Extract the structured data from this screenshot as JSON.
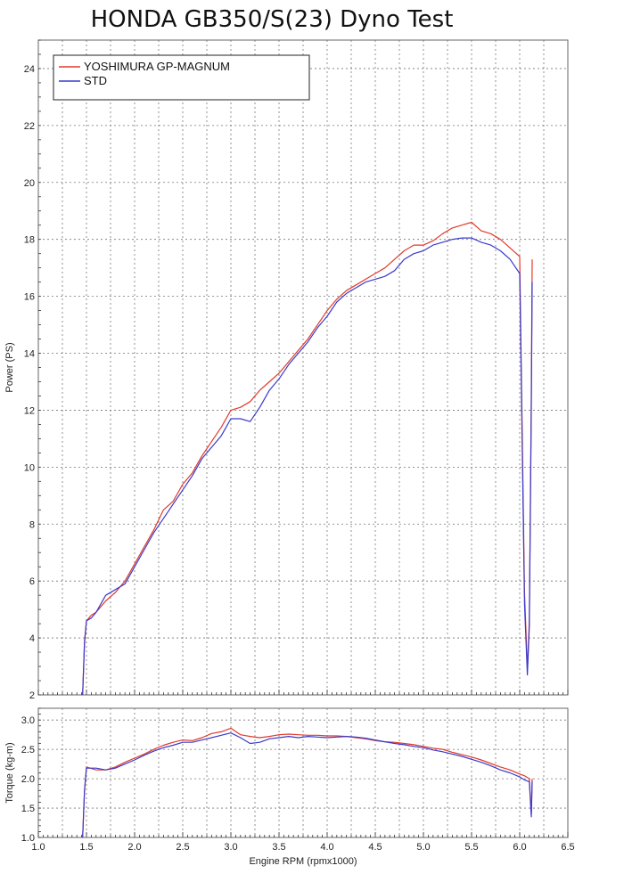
{
  "chart_data": [
    {
      "type": "line",
      "title": "HONDA GB350/S(23) Dyno Test",
      "xlabel": "",
      "ylabel": "Power (PS)",
      "xlim": [
        1.0,
        6.5
      ],
      "ylim": [
        2,
        25
      ],
      "yticks": [
        "2",
        "4",
        "6",
        "8",
        "10",
        "12",
        "14",
        "16",
        "18",
        "20",
        "22",
        "24"
      ],
      "grid": true,
      "legend_position": "top-left",
      "series": [
        {
          "name": "YOSHIMURA GP-MAGNUM",
          "color": "#e03a2a",
          "x": [
            1.46,
            1.48,
            1.5,
            1.55,
            1.6,
            1.7,
            1.8,
            1.9,
            2.0,
            2.1,
            2.2,
            2.3,
            2.4,
            2.5,
            2.6,
            2.7,
            2.8,
            2.9,
            3.0,
            3.1,
            3.2,
            3.3,
            3.4,
            3.5,
            3.6,
            3.7,
            3.8,
            3.9,
            4.0,
            4.1,
            4.2,
            4.3,
            4.4,
            4.5,
            4.6,
            4.7,
            4.8,
            4.9,
            5.0,
            5.1,
            5.2,
            5.3,
            5.4,
            5.5,
            5.6,
            5.7,
            5.8,
            5.9,
            6.0,
            6.05,
            6.08,
            6.1,
            6.12,
            6.13
          ],
          "y": [
            2.0,
            3.9,
            4.6,
            4.8,
            4.9,
            5.3,
            5.6,
            6.0,
            6.6,
            7.2,
            7.8,
            8.5,
            8.8,
            9.4,
            9.8,
            10.4,
            10.9,
            11.4,
            12.0,
            12.1,
            12.3,
            12.7,
            13.0,
            13.3,
            13.7,
            14.1,
            14.5,
            15.0,
            15.5,
            15.9,
            16.2,
            16.4,
            16.6,
            16.8,
            17.0,
            17.3,
            17.6,
            17.8,
            17.8,
            17.95,
            18.2,
            18.4,
            18.5,
            18.6,
            18.3,
            18.2,
            18.0,
            17.7,
            17.4,
            5.6,
            2.9,
            4.6,
            12.5,
            17.3
          ]
        },
        {
          "name": "STD",
          "color": "#3a3acc",
          "x": [
            1.46,
            1.48,
            1.5,
            1.55,
            1.6,
            1.7,
            1.8,
            1.9,
            2.0,
            2.1,
            2.2,
            2.3,
            2.4,
            2.5,
            2.6,
            2.7,
            2.8,
            2.9,
            3.0,
            3.1,
            3.2,
            3.3,
            3.4,
            3.5,
            3.6,
            3.7,
            3.8,
            3.9,
            4.0,
            4.1,
            4.2,
            4.3,
            4.4,
            4.5,
            4.6,
            4.7,
            4.8,
            4.9,
            5.0,
            5.1,
            5.2,
            5.3,
            5.4,
            5.5,
            5.6,
            5.7,
            5.8,
            5.9,
            6.0,
            6.05,
            6.08,
            6.1,
            6.12,
            6.13
          ],
          "y": [
            2.0,
            3.8,
            4.6,
            4.7,
            4.9,
            5.5,
            5.7,
            5.9,
            6.5,
            7.1,
            7.7,
            8.2,
            8.7,
            9.2,
            9.7,
            10.3,
            10.7,
            11.1,
            11.7,
            11.7,
            11.6,
            12.1,
            12.7,
            13.1,
            13.6,
            14.0,
            14.4,
            14.9,
            15.3,
            15.8,
            16.1,
            16.3,
            16.5,
            16.6,
            16.7,
            16.9,
            17.3,
            17.5,
            17.6,
            17.8,
            17.9,
            18.0,
            18.05,
            18.05,
            17.9,
            17.8,
            17.6,
            17.3,
            16.8,
            5.2,
            2.7,
            4.4,
            12.0,
            16.5
          ]
        }
      ]
    },
    {
      "type": "line",
      "title": "",
      "xlabel": "Engine RPM (rpmx1000)",
      "ylabel": "Torque (kg-m)",
      "xlim": [
        1.0,
        6.5
      ],
      "ylim": [
        1.0,
        3.2
      ],
      "xticks": [
        "1.0",
        "1.5",
        "2.0",
        "2.5",
        "3.0",
        "3.5",
        "4.0",
        "4.5",
        "5.0",
        "5.5",
        "6.0",
        "6.5"
      ],
      "yticks": [
        "1.0",
        "1.5",
        "2.0",
        "2.5",
        "3.0"
      ],
      "grid": true,
      "series": [
        {
          "name": "YOSHIMURA GP-MAGNUM",
          "color": "#e03a2a",
          "x": [
            1.46,
            1.48,
            1.5,
            1.6,
            1.7,
            1.8,
            1.9,
            2.0,
            2.1,
            2.2,
            2.3,
            2.4,
            2.5,
            2.6,
            2.7,
            2.8,
            2.9,
            3.0,
            3.1,
            3.2,
            3.3,
            3.4,
            3.5,
            3.6,
            3.7,
            3.8,
            3.9,
            4.0,
            4.1,
            4.2,
            4.3,
            4.4,
            4.5,
            4.6,
            4.7,
            4.8,
            4.9,
            5.0,
            5.1,
            5.2,
            5.3,
            5.4,
            5.5,
            5.6,
            5.7,
            5.8,
            5.9,
            6.0,
            6.05,
            6.1,
            6.12,
            6.13
          ],
          "y": [
            1.0,
            1.8,
            2.2,
            2.15,
            2.15,
            2.2,
            2.28,
            2.35,
            2.42,
            2.5,
            2.57,
            2.62,
            2.66,
            2.65,
            2.7,
            2.77,
            2.8,
            2.86,
            2.75,
            2.72,
            2.7,
            2.72,
            2.75,
            2.76,
            2.75,
            2.74,
            2.74,
            2.73,
            2.73,
            2.72,
            2.7,
            2.68,
            2.65,
            2.63,
            2.62,
            2.6,
            2.58,
            2.55,
            2.52,
            2.5,
            2.45,
            2.41,
            2.37,
            2.32,
            2.26,
            2.2,
            2.15,
            2.08,
            2.05,
            2.0,
            1.4,
            2.0
          ]
        },
        {
          "name": "STD",
          "color": "#3a3acc",
          "x": [
            1.46,
            1.48,
            1.5,
            1.6,
            1.7,
            1.8,
            1.9,
            2.0,
            2.1,
            2.2,
            2.3,
            2.4,
            2.5,
            2.6,
            2.7,
            2.8,
            2.9,
            3.0,
            3.1,
            3.2,
            3.3,
            3.4,
            3.5,
            3.6,
            3.7,
            3.8,
            3.9,
            4.0,
            4.1,
            4.2,
            4.3,
            4.4,
            4.5,
            4.6,
            4.7,
            4.8,
            4.9,
            5.0,
            5.1,
            5.2,
            5.3,
            5.4,
            5.5,
            5.6,
            5.7,
            5.8,
            5.9,
            6.0,
            6.05,
            6.1,
            6.12,
            6.13
          ],
          "y": [
            1.0,
            1.8,
            2.18,
            2.18,
            2.15,
            2.18,
            2.25,
            2.32,
            2.4,
            2.47,
            2.53,
            2.57,
            2.62,
            2.62,
            2.66,
            2.7,
            2.74,
            2.78,
            2.7,
            2.6,
            2.62,
            2.68,
            2.7,
            2.72,
            2.7,
            2.72,
            2.71,
            2.7,
            2.71,
            2.72,
            2.71,
            2.69,
            2.66,
            2.63,
            2.6,
            2.58,
            2.55,
            2.53,
            2.49,
            2.46,
            2.42,
            2.38,
            2.33,
            2.28,
            2.22,
            2.15,
            2.1,
            2.03,
            1.98,
            1.95,
            1.35,
            1.95
          ]
        }
      ]
    }
  ]
}
